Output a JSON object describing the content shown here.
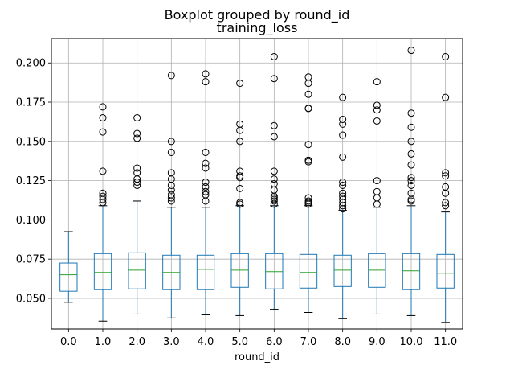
{
  "chart_data": {
    "type": "boxplot",
    "suptitle": "Boxplot grouped by round_id",
    "title": "training_loss",
    "xlabel": "round_id",
    "ylabel": "",
    "categories": [
      "0.0",
      "1.0",
      "2.0",
      "3.0",
      "4.0",
      "5.0",
      "6.0",
      "7.0",
      "8.0",
      "9.0",
      "10.0",
      "11.0"
    ],
    "y_ticks": [
      0.05,
      0.075,
      0.1,
      0.125,
      0.15,
      0.175,
      0.2
    ],
    "y_tick_labels": [
      "0.050",
      "0.075",
      "0.100",
      "0.125",
      "0.150",
      "0.175",
      "0.200"
    ],
    "ylim": [
      0.0305,
      0.2155
    ],
    "grid": true,
    "colors": {
      "box": "#1f77b4",
      "median": "#2ca02c",
      "whisker_cap": "#000000",
      "grid": "#b0b0b0"
    },
    "boxes": [
      {
        "category": "0.0",
        "whislo": 0.0475,
        "q1": 0.0545,
        "med": 0.065,
        "q3": 0.0725,
        "whishi": 0.0925,
        "fliers": []
      },
      {
        "category": "1.0",
        "whislo": 0.0355,
        "q1": 0.0555,
        "med": 0.0665,
        "q3": 0.0785,
        "whishi": 0.109,
        "fliers": [
          0.111,
          0.113,
          0.115,
          0.117,
          0.131,
          0.156,
          0.165,
          0.172
        ]
      },
      {
        "category": "2.0",
        "whislo": 0.04,
        "q1": 0.056,
        "med": 0.068,
        "q3": 0.079,
        "whishi": 0.112,
        "fliers": [
          0.122,
          0.124,
          0.126,
          0.13,
          0.133,
          0.152,
          0.155,
          0.165
        ]
      },
      {
        "category": "3.0",
        "whislo": 0.0375,
        "q1": 0.0555,
        "med": 0.0665,
        "q3": 0.0775,
        "whishi": 0.108,
        "fliers": [
          0.112,
          0.114,
          0.116,
          0.119,
          0.122,
          0.126,
          0.13,
          0.143,
          0.15,
          0.192
        ]
      },
      {
        "category": "4.0",
        "whislo": 0.0395,
        "q1": 0.0555,
        "med": 0.0685,
        "q3": 0.0775,
        "whishi": 0.108,
        "fliers": [
          0.112,
          0.116,
          0.118,
          0.121,
          0.124,
          0.133,
          0.136,
          0.143,
          0.188,
          0.193
        ]
      },
      {
        "category": "5.0",
        "whislo": 0.039,
        "q1": 0.057,
        "med": 0.068,
        "q3": 0.0785,
        "whishi": 0.109,
        "fliers": [
          0.11,
          0.111,
          0.12,
          0.127,
          0.128,
          0.131,
          0.15,
          0.157,
          0.161,
          0.187
        ]
      },
      {
        "category": "6.0",
        "whislo": 0.043,
        "q1": 0.056,
        "med": 0.067,
        "q3": 0.0785,
        "whishi": 0.109,
        "fliers": [
          0.11,
          0.112,
          0.113,
          0.114,
          0.115,
          0.119,
          0.123,
          0.126,
          0.131,
          0.153,
          0.16,
          0.19,
          0.204
        ]
      },
      {
        "category": "7.0",
        "whislo": 0.041,
        "q1": 0.0565,
        "med": 0.0665,
        "q3": 0.078,
        "whishi": 0.109,
        "fliers": [
          0.11,
          0.111,
          0.112,
          0.114,
          0.137,
          0.138,
          0.148,
          0.171,
          0.171,
          0.18,
          0.187,
          0.191
        ]
      },
      {
        "category": "8.0",
        "whislo": 0.037,
        "q1": 0.0575,
        "med": 0.068,
        "q3": 0.0775,
        "whishi": 0.106,
        "fliers": [
          0.107,
          0.109,
          0.111,
          0.113,
          0.115,
          0.117,
          0.122,
          0.124,
          0.14,
          0.154,
          0.161,
          0.164,
          0.178
        ]
      },
      {
        "category": "9.0",
        "whislo": 0.04,
        "q1": 0.057,
        "med": 0.068,
        "q3": 0.0785,
        "whishi": 0.108,
        "fliers": [
          0.11,
          0.114,
          0.118,
          0.125,
          0.163,
          0.17,
          0.173,
          0.188
        ]
      },
      {
        "category": "10.0",
        "whislo": 0.039,
        "q1": 0.0555,
        "med": 0.0675,
        "q3": 0.0785,
        "whishi": 0.109,
        "fliers": [
          0.112,
          0.113,
          0.117,
          0.122,
          0.125,
          0.127,
          0.135,
          0.142,
          0.15,
          0.159,
          0.168,
          0.208
        ]
      },
      {
        "category": "11.0",
        "whislo": 0.0345,
        "q1": 0.0565,
        "med": 0.066,
        "q3": 0.078,
        "whishi": 0.105,
        "fliers": [
          0.109,
          0.111,
          0.117,
          0.121,
          0.128,
          0.13,
          0.178,
          0.204
        ]
      }
    ]
  }
}
